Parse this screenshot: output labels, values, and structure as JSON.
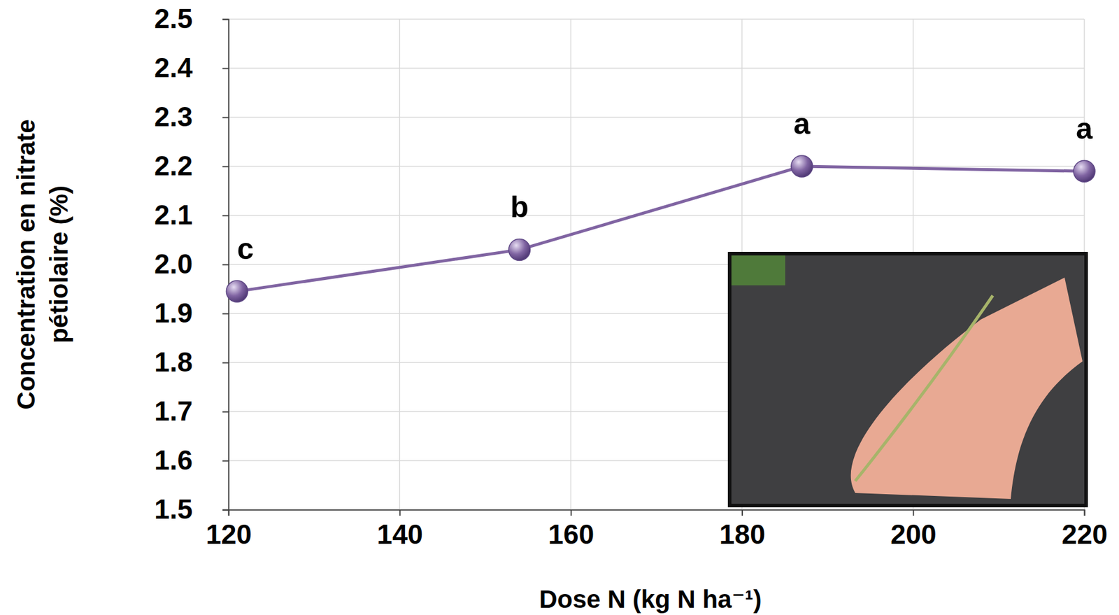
{
  "chart_data": {
    "type": "line",
    "x_label": "Dose N (kg N ha⁻¹)",
    "y_label": "Concentration en nitrate pétiolaire (%)",
    "x": [
      121,
      154,
      187,
      220
    ],
    "series": [
      {
        "color": "#8064a2",
        "values": [
          1.945,
          2.03,
          2.2,
          2.19
        ],
        "annotations": [
          "c",
          "b",
          "a",
          "a"
        ],
        "marker": "circle",
        "line_style": "solid"
      }
    ],
    "xlim": [
      120,
      220
    ],
    "xticks": [
      120,
      140,
      160,
      180,
      200,
      220
    ],
    "ylim": [
      1.5,
      2.5
    ],
    "yticks": [
      1.5,
      1.6,
      1.7,
      1.8,
      1.9,
      {
        "value": 2,
        "label": "2.0"
      },
      2.1,
      2.2,
      2.3,
      2.4,
      2.5
    ],
    "grid": true
  }
}
